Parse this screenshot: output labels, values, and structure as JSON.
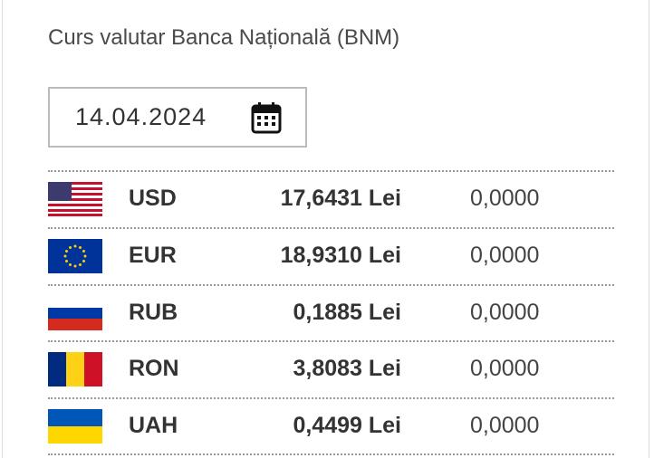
{
  "header": {
    "title": "Curs valutar Banca Națională (BNM)"
  },
  "date": "14.04.2024",
  "rates": [
    {
      "code": "USD",
      "rate": "17,6431 Lei",
      "change": "0,0000"
    },
    {
      "code": "EUR",
      "rate": "18,9310 Lei",
      "change": "0,0000"
    },
    {
      "code": "RUB",
      "rate": "0,1885 Lei",
      "change": "0,0000"
    },
    {
      "code": "RON",
      "rate": "3,8083 Lei",
      "change": "0,0000"
    },
    {
      "code": "UAH",
      "rate": "0,4499 Lei",
      "change": "0,0000"
    }
  ]
}
